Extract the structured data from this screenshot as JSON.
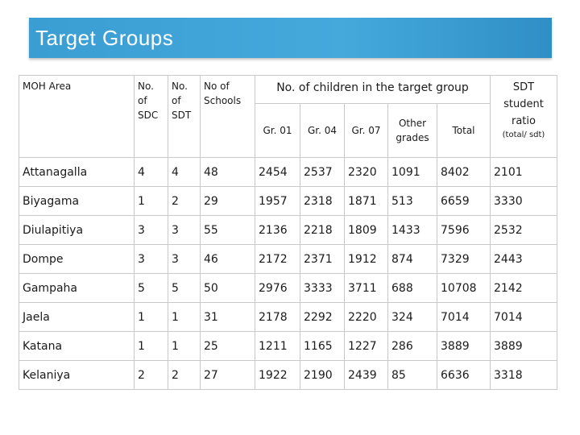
{
  "banner": {
    "title": "Target  Groups"
  },
  "headers": {
    "moh_area": "MOH Area",
    "no_sdc": "No. of SDC",
    "no_sdt": "No. of SDT",
    "no_schools": "No of Schools",
    "children_group": "No. of children in the target group",
    "gr01": "Gr. 01",
    "gr04": "Gr. 04",
    "gr07": "Gr. 07",
    "other": "Other grades",
    "total": "Total",
    "ratio": "SDT student ratio",
    "ratio_note": "(total/ sdt)"
  },
  "rows": [
    [
      "Attanagalla",
      "4",
      "4",
      "48",
      "2454",
      "2537",
      "2320",
      "1091",
      "8402",
      "2101"
    ],
    [
      "Biyagama",
      "1",
      "2",
      "29",
      "1957",
      "2318",
      "1871",
      "513",
      "6659",
      "3330"
    ],
    [
      "Diulapitiya",
      "3",
      "3",
      "55",
      "2136",
      "2218",
      "1809",
      "1433",
      "7596",
      "2532"
    ],
    [
      "Dompe",
      "3",
      "3",
      "46",
      "2172",
      "2371",
      "1912",
      "874",
      "7329",
      "2443"
    ],
    [
      "Gampaha",
      "5",
      "5",
      "50",
      "2976",
      "3333",
      "3711",
      "688",
      "10708",
      "2142"
    ],
    [
      "Jaela",
      "1",
      "1",
      "31",
      "2178",
      "2292",
      "2220",
      "324",
      "7014",
      "7014"
    ],
    [
      "Katana",
      "1",
      "1",
      "25",
      "1211",
      "1165",
      "1227",
      "286",
      "3889",
      "3889"
    ],
    [
      "Kelaniya",
      "2",
      "2",
      "27",
      "1922",
      "2190",
      "2439",
      "85",
      "6636",
      "3318"
    ]
  ]
}
